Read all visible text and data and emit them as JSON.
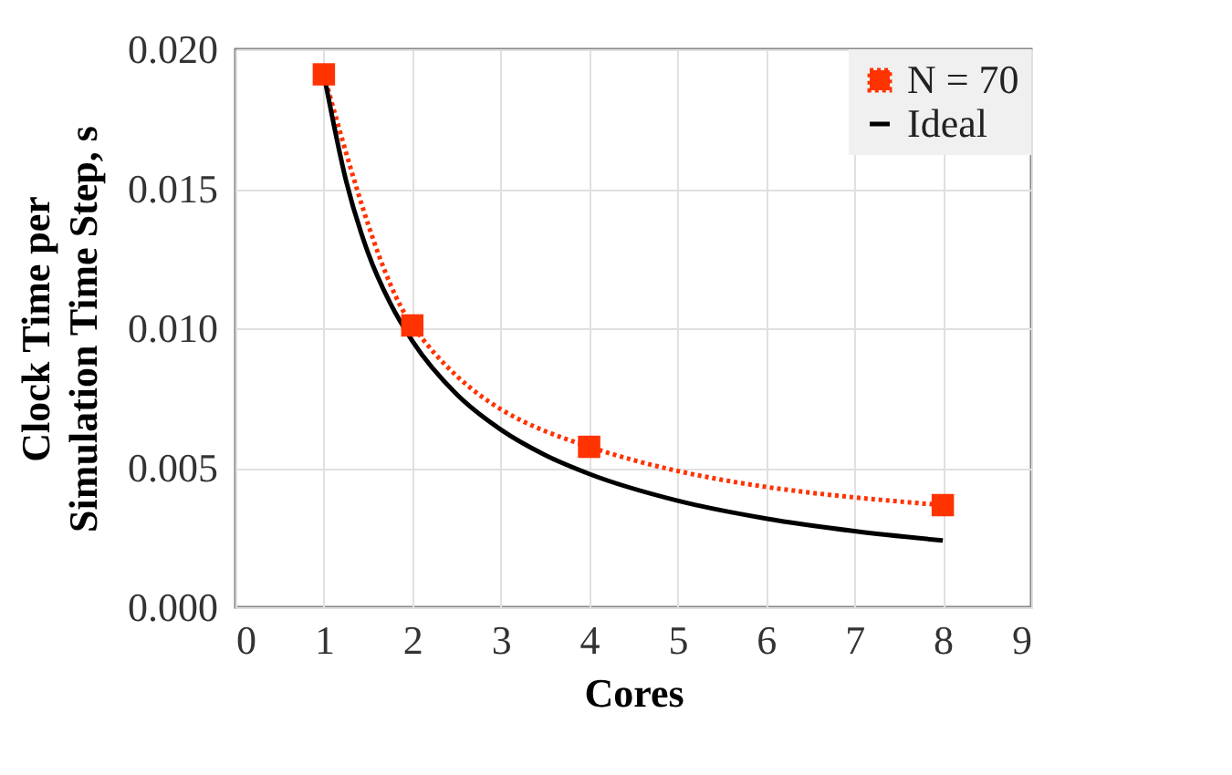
{
  "chart_data": {
    "type": "line",
    "xlabel": "Cores",
    "ylabel": "Clock Time per\nSimulation Time Step, s",
    "xlim": [
      0,
      9
    ],
    "xticks": [
      0,
      1,
      2,
      3,
      4,
      5,
      6,
      7,
      8,
      9
    ],
    "ylim": [
      0,
      0.02
    ],
    "yticks": [
      {
        "value": 0,
        "label": "0.000"
      },
      {
        "value": 0.005,
        "label": "0.005"
      },
      {
        "value": 0.01,
        "label": "0.010"
      },
      {
        "value": 0.015,
        "label": "0.015"
      },
      {
        "value": 0.02,
        "label": "0.020"
      }
    ],
    "grid": true,
    "legend": "top right",
    "series": [
      {
        "name": "N = 70",
        "color": "#ff3300",
        "marker": "square",
        "line_style": "dotted",
        "x": [
          1,
          2,
          4,
          8
        ],
        "values": [
          0.0191,
          0.0101,
          0.00575,
          0.00366
        ]
      },
      {
        "name": "Ideal",
        "color": "#000000",
        "marker": "none",
        "line_style": "solid",
        "x": [
          1,
          1.25,
          1.5,
          1.75,
          2,
          2.5,
          3,
          3.5,
          4,
          5,
          6,
          7,
          8
        ],
        "values": [
          0.0191,
          0.0153,
          0.0127,
          0.0109,
          0.00955,
          0.00764,
          0.00637,
          0.00546,
          0.00478,
          0.00382,
          0.00318,
          0.00273,
          0.00239
        ]
      }
    ]
  }
}
